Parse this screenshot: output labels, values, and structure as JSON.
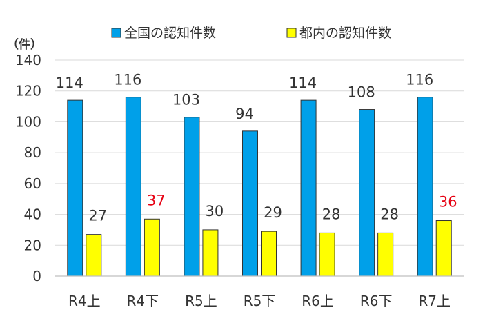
{
  "chart_data": {
    "type": "bar",
    "unit_label": "（件）",
    "categories": [
      "R4上",
      "R4下",
      "R5上",
      "R5下",
      "R6上",
      "R6下",
      "R7上"
    ],
    "series": [
      {
        "name": "全国の認知件数",
        "color": "#00a0e9",
        "values": [
          114,
          116,
          103,
          94,
          114,
          108,
          116
        ],
        "label_colors": [
          "#333333",
          "#333333",
          "#333333",
          "#333333",
          "#333333",
          "#333333",
          "#333333"
        ]
      },
      {
        "name": "都内の認知件数",
        "color": "#ffff00",
        "values": [
          27,
          37,
          30,
          29,
          28,
          28,
          36
        ],
        "label_colors": [
          "#333333",
          "#e60012",
          "#333333",
          "#333333",
          "#333333",
          "#333333",
          "#e60012"
        ]
      }
    ],
    "ylim": [
      0,
      140
    ],
    "yticks": [
      0,
      20,
      40,
      60,
      80,
      100,
      120,
      140
    ],
    "grid": true,
    "legend_position": "top"
  }
}
